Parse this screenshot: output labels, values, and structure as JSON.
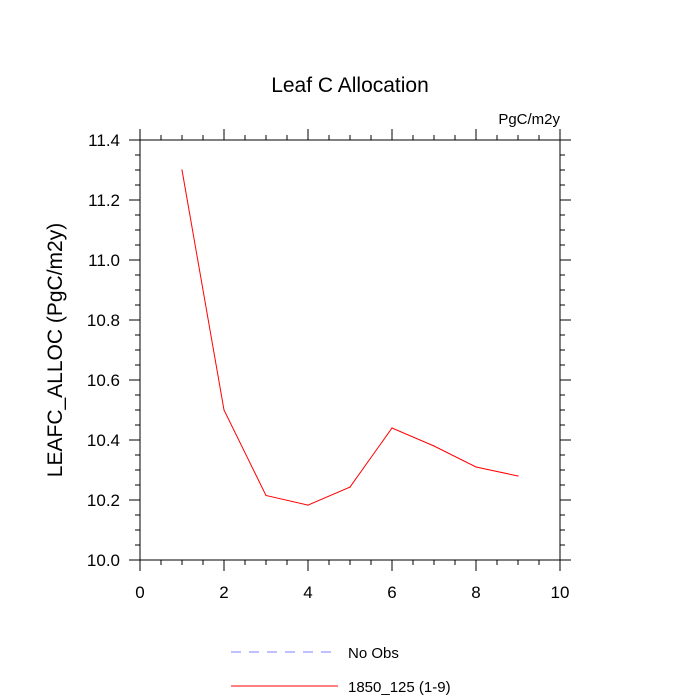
{
  "chart_data": {
    "type": "line",
    "title": "Leaf C Allocation",
    "units": "PgC/m2y",
    "ylabel": "LEAFC_ALLOC  (PgC/m2y)",
    "xlabel": "",
    "xlim": [
      0,
      10
    ],
    "ylim": [
      10.0,
      11.4
    ],
    "xticks": [
      0,
      2,
      4,
      6,
      8,
      10
    ],
    "xtick_labels": [
      "0",
      "2",
      "4",
      "6",
      "8",
      "10"
    ],
    "yticks": [
      10.0,
      10.2,
      10.4,
      10.6,
      10.8,
      11.0,
      11.2,
      11.4
    ],
    "ytick_labels": [
      "10.0",
      "10.2",
      "10.4",
      "10.6",
      "10.8",
      "11.0",
      "11.2",
      "11.4"
    ],
    "series": [
      {
        "name": "1850_125 (1-9)",
        "color": "#ff0000",
        "style": "solid",
        "x": [
          1,
          2,
          3,
          4,
          5,
          6,
          7,
          8,
          9
        ],
        "values": [
          11.3,
          10.5,
          10.215,
          10.183,
          10.243,
          10.44,
          10.38,
          10.31,
          10.28
        ]
      }
    ],
    "legend": [
      {
        "label": "No Obs",
        "color": "#8080ff",
        "style": "dashed"
      },
      {
        "label": "1850_125 (1-9)",
        "color": "#ff0000",
        "style": "solid"
      }
    ],
    "legend_position": "bottom"
  }
}
